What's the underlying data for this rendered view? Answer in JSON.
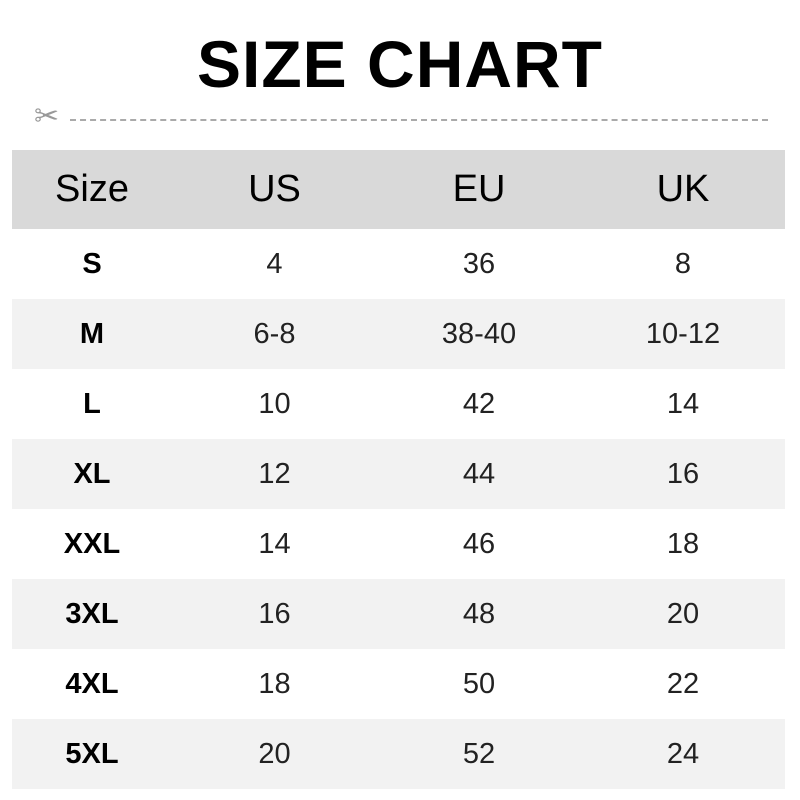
{
  "title": "SIZE CHART",
  "icons": {
    "cut": "scissors-icon"
  },
  "colors": {
    "header_bg": "#d9d9d9",
    "alt_row_bg": "#f2f2f2",
    "cut_line": "#aaaaaa"
  },
  "table": {
    "headers": [
      "Size",
      "US",
      "EU",
      "UK"
    ],
    "rows": [
      [
        "S",
        "4",
        "36",
        "8"
      ],
      [
        "M",
        "6-8",
        "38-40",
        "10-12"
      ],
      [
        "L",
        "10",
        "42",
        "14"
      ],
      [
        "XL",
        "12",
        "44",
        "16"
      ],
      [
        "XXL",
        "14",
        "46",
        "18"
      ],
      [
        "3XL",
        "16",
        "48",
        "20"
      ],
      [
        "4XL",
        "18",
        "50",
        "22"
      ],
      [
        "5XL",
        "20",
        "52",
        "24"
      ]
    ]
  }
}
